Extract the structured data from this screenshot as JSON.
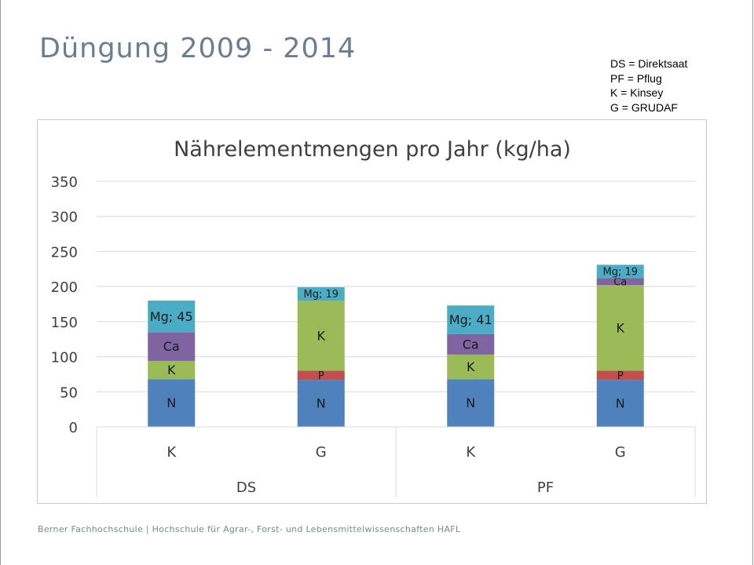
{
  "slide": {
    "title": "Düngung 2009 - 2014",
    "legend_notes": [
      "DS = Direktsaat",
      "PF = Pflug",
      "K = Kinsey",
      "G = GRUDAF"
    ],
    "footer": "Berner Fachhochschule | Hochschule für Agrar-, Forst- und Lebensmittelwissenschaften HAFL"
  },
  "chart_data": {
    "type": "bar",
    "stacked": true,
    "title": "Nährelementmengen pro Jahr (kg/ha)",
    "xlabel": "",
    "ylabel": "",
    "ylim": [
      0,
      350
    ],
    "yticks": [
      0,
      50,
      100,
      150,
      200,
      250,
      300,
      350
    ],
    "grid": true,
    "categories": [
      "K",
      "G",
      "K",
      "G"
    ],
    "groups": [
      {
        "label": "DS",
        "categories": [
          "K",
          "G"
        ]
      },
      {
        "label": "PF",
        "categories": [
          "K",
          "G"
        ]
      }
    ],
    "series": [
      {
        "name": "N",
        "color": "#4f81bd",
        "values": [
          68,
          67,
          68,
          67
        ],
        "labels": [
          "N",
          "N",
          "N",
          "N"
        ]
      },
      {
        "name": "P",
        "color": "#c0504d",
        "values": [
          0,
          13,
          0,
          13
        ],
        "labels": [
          "",
          "P",
          "",
          "P"
        ]
      },
      {
        "name": "K",
        "color": "#9bbb59",
        "values": [
          26,
          100,
          35,
          122
        ],
        "labels": [
          "K",
          "K",
          "K",
          "K"
        ]
      },
      {
        "name": "Ca",
        "color": "#8064a2",
        "values": [
          41,
          0,
          29,
          10
        ],
        "labels": [
          "Ca",
          "",
          "Ca",
          "Ca"
        ]
      },
      {
        "name": "Mg",
        "color": "#4bacc6",
        "values": [
          45,
          19,
          41,
          19
        ],
        "labels": [
          "Mg; 45",
          "Mg; 19",
          "Mg; 41",
          "Mg; 19"
        ]
      }
    ]
  }
}
